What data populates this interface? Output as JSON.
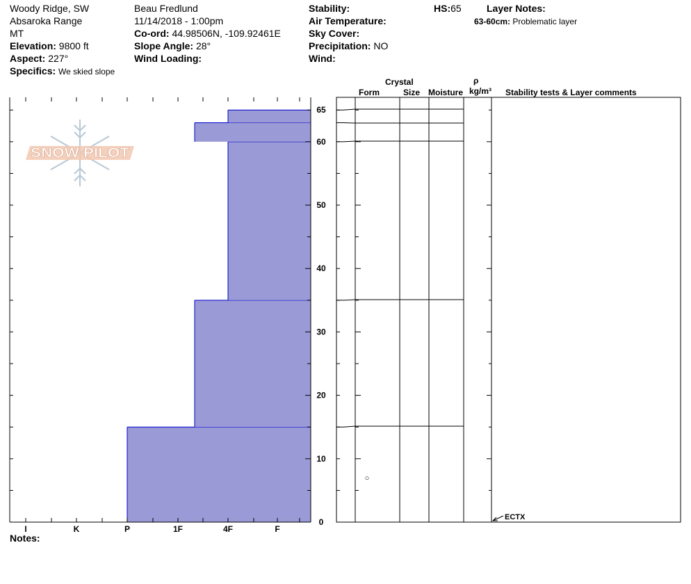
{
  "header": {
    "location": "Woody Ridge, SW",
    "range": "Absaroka Range",
    "state": "MT",
    "elevation_label": "Elevation:",
    "elevation_value": "9800 ft",
    "aspect_label": "Aspect:",
    "aspect_value": "227°",
    "specifics_label": "Specifics:",
    "specifics_value": "We skied slope",
    "observer": "Beau  Fredlund",
    "datetime": "11/14/2018 - 1:00pm",
    "coord_label": "Co-ord:",
    "coord_value": "44.98506N, -109.92461E",
    "slope_label": "Slope Angle:",
    "slope_value": "28°",
    "wind_loading_label": "Wind Loading:",
    "stability_label": "Stability:",
    "air_temp_label": "Air Temperature:",
    "sky_cover_label": "Sky Cover:",
    "precip_label": "Precipitation:",
    "precip_value": "NO",
    "wind_label": "Wind:",
    "hs_label": "HS:",
    "hs_value": "65",
    "layer_notes_label": "Layer Notes:",
    "layer_note_range": "63-60cm:",
    "layer_note_text": "Problematic layer"
  },
  "columns": {
    "crystal": "Crystal",
    "form": "Form",
    "size": "Size",
    "moisture": "Moisture",
    "rho": "ρ",
    "density_unit": "kg/m³",
    "comments": "Stability tests & Layer comments"
  },
  "notes_label": "Notes:",
  "logo_text": "SNOW PILOT",
  "colors": {
    "hardness_fill": "#9a9ad6",
    "hardness_edge": "#0000cc"
  },
  "chart_data": {
    "type": "bar",
    "orientation": "horizontal-hardness-profile",
    "y_unit": "cm",
    "ylim": [
      0,
      67
    ],
    "y_ticks": [
      0,
      10,
      20,
      30,
      40,
      50,
      60,
      65
    ],
    "x_categories": [
      "I",
      "K",
      "P",
      "1F",
      "4F",
      "F"
    ],
    "layers": [
      {
        "bottom": 0,
        "top": 15,
        "hardness": "P"
      },
      {
        "bottom": 15,
        "top": 35,
        "hardness": "1F+"
      },
      {
        "bottom": 35,
        "top": 60,
        "hardness": "4F"
      },
      {
        "bottom": 60,
        "top": 63,
        "hardness": "1F+"
      },
      {
        "bottom": 63,
        "top": 65,
        "hardness": "4F"
      }
    ],
    "layer_boundaries": [
      65,
      63,
      60,
      35,
      15
    ],
    "observations": [
      {
        "height": 7,
        "symbol": "○"
      }
    ],
    "tests": [
      {
        "height": 0,
        "label": "ECTX"
      }
    ]
  }
}
